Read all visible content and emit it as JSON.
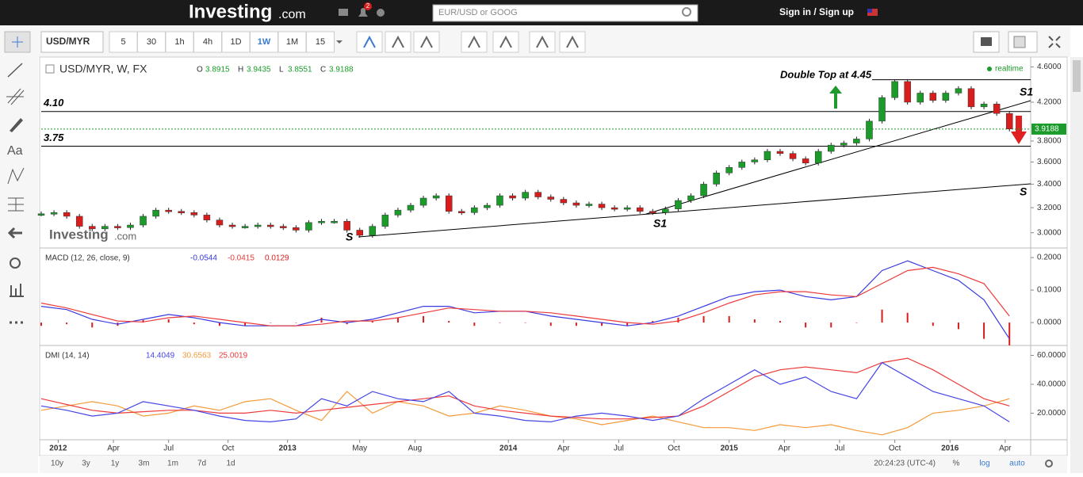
{
  "header": {
    "logo": "Investing",
    "logo_suffix": ".com",
    "notifications": "2",
    "search_placeholder": "EUR/USD or GOOG",
    "sign_in": "Sign in / Sign up"
  },
  "toolbar": {
    "symbol": "USD/MYR",
    "intervals": [
      "5",
      "30",
      "1h",
      "4h",
      "1D",
      "1W",
      "1M",
      "15"
    ],
    "active_interval": "1W"
  },
  "left_tools": {
    "text_tool": "Aa"
  },
  "chart": {
    "title": "USD/MYR, W, FX",
    "ohlc": {
      "labels": [
        "O",
        "H",
        "L",
        "C"
      ],
      "values": [
        "3.8915",
        "3.9435",
        "3.8551",
        "3.9188"
      ]
    },
    "realtime": "realtime",
    "watermark": "Investing",
    "watermark_suffix": ".com",
    "annotations": [
      "Double Top at 4.45",
      "S",
      "S1",
      "S1",
      "S"
    ],
    "xlim": [
      0,
      233
    ],
    "xticks": [
      {
        "value": 4,
        "label": "2012"
      },
      {
        "value": 17,
        "label": "Apr"
      },
      {
        "value": 30,
        "label": "Jul"
      },
      {
        "value": 44,
        "label": "Oct"
      },
      {
        "value": 58,
        "label": "2013"
      },
      {
        "value": 75,
        "label": "May"
      },
      {
        "value": 88,
        "label": "Aug"
      },
      {
        "value": 110,
        "label": "2014"
      },
      {
        "value": 123,
        "label": "Apr"
      },
      {
        "value": 136,
        "label": "Jul"
      },
      {
        "value": 149,
        "label": "Oct"
      },
      {
        "value": 162,
        "label": "2015"
      },
      {
        "value": 175,
        "label": "Apr"
      },
      {
        "value": 188,
        "label": "Jul"
      },
      {
        "value": 201,
        "label": "Oct"
      },
      {
        "value": 214,
        "label": "2016"
      },
      {
        "value": 227,
        "label": "Apr"
      }
    ],
    "price": {
      "log": true,
      "ylim": [
        2.89,
        4.68
      ],
      "yticks": [
        {
          "value": 3.0,
          "label": "3.0000"
        },
        {
          "value": 3.2,
          "label": "3.2000"
        },
        {
          "value": 3.4,
          "label": "3.4000"
        },
        {
          "value": 3.6,
          "label": "3.6000"
        },
        {
          "value": 3.8,
          "label": "3.8000"
        },
        {
          "value": 4.2,
          "label": "4.2000"
        },
        {
          "value": 4.6,
          "label": "4.6000"
        }
      ],
      "up_color": "#1a9b2a",
      "down_color": "#d91c1c",
      "weeks": [
        0,
        3,
        6,
        9,
        12,
        15,
        18,
        21,
        24,
        27,
        30,
        33,
        36,
        39,
        42,
        45,
        48,
        51,
        54,
        57,
        60,
        63,
        66,
        69,
        72,
        75,
        78,
        81,
        84,
        87,
        90,
        93,
        96,
        99,
        102,
        105,
        108,
        111,
        114,
        117,
        120,
        123,
        126,
        129,
        132,
        135,
        138,
        141,
        144,
        147,
        150,
        153,
        156,
        159,
        162,
        165,
        168,
        171,
        174,
        177,
        180,
        183,
        186,
        189,
        192,
        195,
        198,
        201,
        204,
        207,
        210,
        213,
        216,
        219,
        222,
        225,
        228
      ],
      "closes": [
        3.15,
        3.16,
        3.13,
        3.05,
        3.03,
        3.05,
        3.04,
        3.06,
        3.13,
        3.18,
        3.17,
        3.16,
        3.14,
        3.1,
        3.06,
        3.05,
        3.05,
        3.06,
        3.05,
        3.04,
        3.02,
        3.08,
        3.09,
        3.09,
        3.02,
        2.98,
        3.05,
        3.14,
        3.18,
        3.22,
        3.28,
        3.3,
        3.17,
        3.16,
        3.2,
        3.22,
        3.3,
        3.28,
        3.33,
        3.29,
        3.27,
        3.24,
        3.22,
        3.23,
        3.2,
        3.19,
        3.2,
        3.17,
        3.16,
        3.19,
        3.26,
        3.3,
        3.4,
        3.5,
        3.55,
        3.6,
        3.62,
        3.7,
        3.68,
        3.63,
        3.59,
        3.7,
        3.76,
        3.78,
        3.82,
        4.0,
        4.25,
        4.43,
        4.2,
        4.3,
        4.22,
        4.3,
        4.35,
        4.15,
        4.18,
        4.08,
        3.92
      ],
      "levels": [
        {
          "value": 4.1,
          "label": "4.10"
        },
        {
          "value": 3.75,
          "label": "3.75"
        }
      ],
      "double_top_level": 4.45,
      "last": {
        "value": 3.9188,
        "label": "3.9188"
      }
    },
    "macd": {
      "title": "MACD (12, 26, close, 9)",
      "legend": [
        "-0.0544",
        "-0.0415",
        "0.0129"
      ],
      "ylim": [
        -0.068,
        0.227
      ],
      "yticks": [
        {
          "value": 0.0,
          "label": "0.0000"
        },
        {
          "value": 0.1,
          "label": "0.1000"
        },
        {
          "value": 0.2,
          "label": "0.2000"
        }
      ],
      "weeks": [
        0,
        6,
        12,
        18,
        24,
        30,
        36,
        42,
        48,
        54,
        60,
        66,
        72,
        78,
        84,
        90,
        96,
        102,
        108,
        114,
        120,
        126,
        132,
        138,
        144,
        150,
        156,
        162,
        168,
        174,
        180,
        186,
        192,
        198,
        204,
        210,
        216,
        222,
        228
      ],
      "macd": [
        0.05,
        0.04,
        0.01,
        -0.005,
        0.01,
        0.025,
        0.015,
        0,
        -0.01,
        -0.01,
        -0.01,
        0.01,
        0,
        0.01,
        0.03,
        0.05,
        0.05,
        0.03,
        0.035,
        0.035,
        0.02,
        0.01,
        0,
        -0.01,
        0,
        0.02,
        0.05,
        0.08,
        0.095,
        0.1,
        0.08,
        0.07,
        0.08,
        0.16,
        0.19,
        0.16,
        0.13,
        0.07,
        -0.05
      ],
      "signal": [
        0.06,
        0.045,
        0.025,
        0.005,
        0.002,
        0.015,
        0.02,
        0.01,
        0,
        -0.01,
        -0.01,
        -0.005,
        0.005,
        0.005,
        0.015,
        0.03,
        0.045,
        0.04,
        0.035,
        0.035,
        0.03,
        0.02,
        0.01,
        0,
        -0.005,
        0.005,
        0.03,
        0.06,
        0.085,
        0.095,
        0.095,
        0.085,
        0.08,
        0.12,
        0.16,
        0.17,
        0.15,
        0.12,
        0.02
      ],
      "histogram": [
        -0.01,
        -0.005,
        -0.015,
        -0.01,
        0.008,
        0.01,
        -0.005,
        -0.01,
        -0.01,
        0,
        0,
        0.015,
        -0.005,
        0.005,
        0.015,
        0.02,
        0.005,
        -0.01,
        0,
        0,
        -0.01,
        -0.01,
        -0.01,
        -0.01,
        0.005,
        0.015,
        0.02,
        0.02,
        0.01,
        0.005,
        -0.015,
        -0.015,
        0,
        0.04,
        0.03,
        -0.01,
        -0.02,
        -0.05,
        -0.07
      ],
      "colors": [
        "#3a3ae0",
        "#ee3a3a",
        "#d91c1c"
      ]
    },
    "dmi": {
      "title": "DMI (14, 14)",
      "legend": [
        "14.4049",
        "30.6563",
        "25.0019"
      ],
      "ylim": [
        1.6,
        66.3
      ],
      "yticks": [
        {
          "value": 20,
          "label": "20.0000"
        },
        {
          "value": 40,
          "label": "40.0000"
        },
        {
          "value": 60,
          "label": "60.0000"
        }
      ],
      "weeks": [
        0,
        6,
        12,
        18,
        24,
        30,
        36,
        42,
        48,
        54,
        60,
        66,
        72,
        78,
        84,
        90,
        96,
        102,
        108,
        114,
        120,
        126,
        132,
        138,
        144,
        150,
        156,
        162,
        168,
        174,
        180,
        186,
        192,
        198,
        204,
        210,
        216,
        222,
        228
      ],
      "plus": [
        25,
        22,
        18,
        20,
        28,
        25,
        22,
        18,
        15,
        14,
        16,
        30,
        25,
        35,
        30,
        28,
        35,
        20,
        18,
        15,
        14,
        18,
        20,
        18,
        15,
        18,
        30,
        40,
        50,
        40,
        45,
        35,
        30,
        55,
        45,
        35,
        30,
        25,
        14
      ],
      "minus": [
        22,
        25,
        28,
        25,
        18,
        20,
        25,
        22,
        28,
        30,
        22,
        15,
        35,
        20,
        28,
        25,
        18,
        20,
        25,
        22,
        18,
        16,
        12,
        15,
        18,
        14,
        10,
        10,
        8,
        12,
        10,
        12,
        8,
        5,
        10,
        20,
        22,
        25,
        30
      ],
      "adx": [
        30,
        26,
        22,
        20,
        21,
        22,
        22,
        20,
        20,
        22,
        20,
        22,
        24,
        26,
        28,
        30,
        32,
        25,
        22,
        20,
        18,
        17,
        16,
        16,
        17,
        18,
        25,
        35,
        45,
        50,
        52,
        50,
        48,
        55,
        58,
        50,
        40,
        30,
        25
      ],
      "colors": [
        "#4545e6",
        "#f59a3a",
        "#ee3a3a"
      ]
    }
  },
  "bottom": {
    "ranges": [
      "10y",
      "3y",
      "1y",
      "3m",
      "1m",
      "7d",
      "1d"
    ],
    "time": "20:24:23 (UTC-4)",
    "options": [
      "%",
      "log",
      "auto"
    ]
  }
}
